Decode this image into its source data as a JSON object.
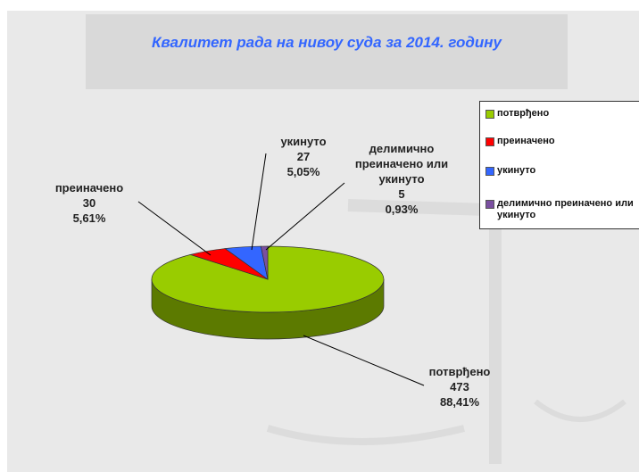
{
  "chart_data": {
    "type": "pie3d",
    "title": "Квалитет рада на нивоу суда за 2014. годину",
    "categories": [
      "потврђено",
      "преиначено",
      "укинуто",
      "делимично преиначено или укинуто"
    ],
    "values": [
      473,
      30,
      27,
      5
    ],
    "percentages": [
      88.41,
      5.61,
      5.05,
      0.93
    ],
    "percentage_labels": [
      "88,41%",
      "5,61%",
      "5,05%",
      "0,93%"
    ],
    "colors": [
      "#99cc00",
      "#ff0000",
      "#3366ff",
      "#7a4fa0"
    ],
    "legend": "right"
  }
}
